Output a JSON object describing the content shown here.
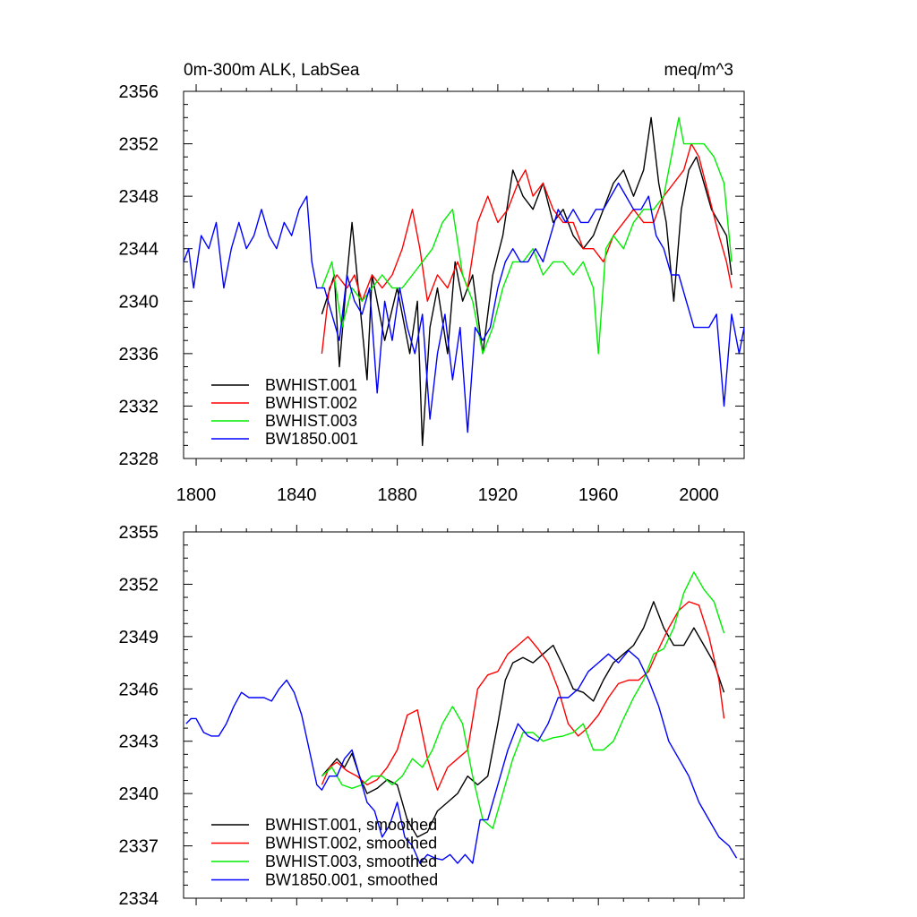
{
  "chart_data": [
    {
      "type": "line",
      "title_left": "0m-300m ALK, LabSea",
      "title_right": "meq/m^3",
      "xlim": [
        1795,
        2018
      ],
      "ylim": [
        2328,
        2356
      ],
      "xticks": [
        1800,
        1840,
        1880,
        1920,
        1960,
        2000
      ],
      "yticks": [
        2328,
        2332,
        2336,
        2340,
        2344,
        2348,
        2352,
        2356
      ],
      "legend_position": "bottom-left",
      "series": [
        {
          "name": "BWHIST.001",
          "color": "#000000",
          "x": [
            1850,
            1855,
            1857,
            1860,
            1862,
            1865,
            1868,
            1870,
            1875,
            1880,
            1885,
            1888,
            1890,
            1893,
            1896,
            1900,
            1903,
            1906,
            1910,
            1914,
            1918,
            1922,
            1926,
            1930,
            1934,
            1938,
            1942,
            1946,
            1950,
            1954,
            1958,
            1962,
            1966,
            1970,
            1974,
            1978,
            1981,
            1984,
            1987,
            1990,
            1993,
            1996,
            1999,
            2002,
            2005,
            2008,
            2011,
            2013
          ],
          "values": [
            2339,
            2342,
            2335,
            2342,
            2346,
            2340,
            2334,
            2342,
            2337,
            2341,
            2336,
            2340,
            2329,
            2338,
            2341,
            2336,
            2343,
            2340,
            2342,
            2336,
            2342,
            2345,
            2350,
            2348,
            2347,
            2349,
            2346,
            2347,
            2345,
            2344,
            2345,
            2347,
            2349,
            2350,
            2348,
            2350,
            2354,
            2349,
            2346,
            2340,
            2347,
            2350,
            2351,
            2349,
            2347,
            2346,
            2345,
            2342
          ]
        },
        {
          "name": "BWHIST.002",
          "color": "#ff0000",
          "x": [
            1850,
            1853,
            1856,
            1860,
            1863,
            1866,
            1870,
            1874,
            1878,
            1882,
            1886,
            1889,
            1892,
            1896,
            1900,
            1904,
            1908,
            1912,
            1916,
            1920,
            1924,
            1928,
            1931,
            1934,
            1938,
            1942,
            1946,
            1950,
            1954,
            1958,
            1962,
            1966,
            1970,
            1974,
            1978,
            1982,
            1986,
            1990,
            1994,
            1997,
            2000,
            2004,
            2008,
            2011,
            2013
          ],
          "values": [
            2336,
            2341,
            2342,
            2341,
            2342,
            2340,
            2342,
            2341,
            2342,
            2344,
            2347,
            2344,
            2340,
            2342,
            2341,
            2343,
            2341,
            2346,
            2348,
            2346,
            2347,
            2349,
            2350,
            2348,
            2349,
            2347,
            2346,
            2346,
            2344,
            2344,
            2343,
            2345,
            2346,
            2347,
            2346,
            2346,
            2348,
            2349,
            2350,
            2352,
            2351,
            2348,
            2345,
            2343,
            2341
          ]
        },
        {
          "name": "BWHIST.003",
          "color": "#00ee00",
          "x": [
            1850,
            1854,
            1858,
            1862,
            1866,
            1870,
            1874,
            1878,
            1882,
            1886,
            1890,
            1894,
            1898,
            1902,
            1906,
            1910,
            1914,
            1918,
            1922,
            1926,
            1930,
            1934,
            1938,
            1942,
            1946,
            1950,
            1954,
            1958,
            1960,
            1963,
            1966,
            1970,
            1974,
            1978,
            1982,
            1986,
            1990,
            1992,
            1994,
            1998,
            2002,
            2006,
            2010,
            2013
          ],
          "values": [
            2341,
            2343,
            2338,
            2341,
            2340,
            2341,
            2342,
            2341,
            2341,
            2342,
            2343,
            2344,
            2346,
            2347,
            2342,
            2340,
            2336,
            2338,
            2341,
            2343,
            2343,
            2344,
            2342,
            2343,
            2343,
            2342,
            2343,
            2341,
            2336,
            2344,
            2345,
            2344,
            2346,
            2347,
            2347,
            2348,
            2352,
            2354,
            2352,
            2352,
            2352,
            2351,
            2349,
            2343
          ]
        },
        {
          "name": "BW1850.001",
          "color": "#0000ff",
          "x": [
            1795,
            1797,
            1799,
            1802,
            1805,
            1808,
            1811,
            1814,
            1817,
            1820,
            1823,
            1826,
            1829,
            1832,
            1835,
            1838,
            1841,
            1844,
            1846,
            1848,
            1851,
            1854,
            1857,
            1860,
            1863,
            1866,
            1869,
            1872,
            1875,
            1878,
            1881,
            1884,
            1887,
            1890,
            1893,
            1896,
            1899,
            1902,
            1905,
            1908,
            1911,
            1914,
            1917,
            1920,
            1923,
            1926,
            1929,
            1932,
            1935,
            1938,
            1941,
            1944,
            1947,
            1950,
            1953,
            1956,
            1959,
            1962,
            1965,
            1968,
            1971,
            1974,
            1977,
            1980,
            1983,
            1986,
            1989,
            1992,
            1995,
            1998,
            2001,
            2004,
            2007,
            2010,
            2013,
            2016,
            2018
          ],
          "values": [
            2343,
            2344,
            2341,
            2345,
            2344,
            2346,
            2341,
            2344,
            2346,
            2344,
            2345,
            2347,
            2345,
            2344,
            2346,
            2345,
            2347,
            2348,
            2343,
            2341,
            2341,
            2339,
            2337,
            2342,
            2340,
            2339,
            2341,
            2333,
            2340,
            2337,
            2341,
            2338,
            2336,
            2339,
            2331,
            2336,
            2339,
            2334,
            2338,
            2330,
            2338,
            2337,
            2338,
            2341,
            2343,
            2344,
            2343,
            2343,
            2344,
            2343,
            2345,
            2347,
            2346,
            2347,
            2346,
            2346,
            2347,
            2347,
            2348,
            2349,
            2348,
            2347,
            2347,
            2348,
            2345,
            2344,
            2342,
            2342,
            2340,
            2338,
            2338,
            2338,
            2339,
            2332,
            2339,
            2336,
            2338
          ]
        }
      ]
    },
    {
      "type": "line",
      "xlim": [
        1795,
        2018
      ],
      "ylim": [
        2334,
        2355
      ],
      "xticks": [
        1800,
        1840,
        1880,
        1920,
        1960,
        2000
      ],
      "yticks": [
        2334,
        2337,
        2340,
        2343,
        2346,
        2349,
        2352,
        2355
      ],
      "legend_position": "bottom-left",
      "series": [
        {
          "name": "BWHIST.001, smoothed",
          "color": "#000000",
          "x": [
            1850,
            1853,
            1856,
            1859,
            1862,
            1865,
            1868,
            1872,
            1876,
            1880,
            1884,
            1888,
            1892,
            1896,
            1900,
            1904,
            1908,
            1912,
            1916,
            1920,
            1923,
            1926,
            1930,
            1934,
            1938,
            1942,
            1946,
            1950,
            1954,
            1958,
            1962,
            1966,
            1970,
            1974,
            1978,
            1982,
            1986,
            1990,
            1994,
            1998,
            2002,
            2006,
            2010
          ],
          "values": [
            2341,
            2341.5,
            2342,
            2341.5,
            2342.3,
            2341,
            2340,
            2340.3,
            2340.8,
            2340.5,
            2338.5,
            2337.5,
            2337.8,
            2339,
            2339.5,
            2340,
            2341,
            2340.5,
            2341,
            2344,
            2346.5,
            2347.5,
            2347.8,
            2347.5,
            2348,
            2348.5,
            2347.3,
            2346,
            2345.8,
            2345.3,
            2346.5,
            2347.5,
            2348,
            2348.5,
            2349.5,
            2351,
            2349.5,
            2348.5,
            2348.5,
            2349.5,
            2348.5,
            2347.5,
            2345.8
          ]
        },
        {
          "name": "BWHIST.002, smoothed",
          "color": "#ff0000",
          "x": [
            1850,
            1853,
            1856,
            1860,
            1864,
            1868,
            1872,
            1876,
            1880,
            1884,
            1888,
            1892,
            1896,
            1900,
            1904,
            1908,
            1912,
            1916,
            1920,
            1924,
            1928,
            1932,
            1936,
            1940,
            1944,
            1948,
            1952,
            1956,
            1960,
            1964,
            1968,
            1972,
            1976,
            1980,
            1984,
            1988,
            1992,
            1996,
            2000,
            2004,
            2008,
            2010
          ],
          "values": [
            2340.5,
            2341.5,
            2341.8,
            2341.3,
            2341,
            2340.5,
            2340.8,
            2341.5,
            2342.5,
            2344.5,
            2344.8,
            2342,
            2340.2,
            2341.5,
            2342,
            2342.5,
            2346,
            2346.8,
            2347,
            2348,
            2348.5,
            2349,
            2348.3,
            2347.5,
            2346,
            2344,
            2343.3,
            2343.8,
            2344.5,
            2345.5,
            2346.3,
            2346.5,
            2346.5,
            2347,
            2348.3,
            2349.5,
            2350.5,
            2351,
            2350.8,
            2349,
            2346.5,
            2344.3
          ]
        },
        {
          "name": "BWHIST.003, smoothed",
          "color": "#00ee00",
          "x": [
            1850,
            1854,
            1858,
            1862,
            1866,
            1870,
            1874,
            1878,
            1882,
            1886,
            1890,
            1894,
            1898,
            1902,
            1906,
            1910,
            1914,
            1918,
            1922,
            1926,
            1930,
            1934,
            1938,
            1942,
            1946,
            1950,
            1954,
            1958,
            1962,
            1966,
            1970,
            1974,
            1978,
            1982,
            1986,
            1990,
            1994,
            1998,
            2002,
            2006,
            2010
          ],
          "values": [
            2341,
            2341.5,
            2340.5,
            2340.3,
            2340.5,
            2341,
            2341,
            2340.5,
            2341,
            2342,
            2341.5,
            2342.5,
            2344,
            2345,
            2344,
            2341,
            2338.5,
            2338,
            2340,
            2342,
            2343.5,
            2343.5,
            2343,
            2343.2,
            2343.3,
            2343.5,
            2344,
            2342.5,
            2342.5,
            2343,
            2344.3,
            2345.5,
            2346.5,
            2348,
            2348.3,
            2349.5,
            2351.5,
            2352.7,
            2351.7,
            2351,
            2349.2
          ]
        },
        {
          "name": "BW1850.001, smoothed",
          "color": "#0000ff",
          "x": [
            1796,
            1798,
            1800,
            1803,
            1806,
            1809,
            1812,
            1815,
            1818,
            1821,
            1824,
            1827,
            1830,
            1833,
            1836,
            1839,
            1842,
            1845,
            1848,
            1850,
            1853,
            1856,
            1859,
            1862,
            1865,
            1868,
            1871,
            1874,
            1877,
            1880,
            1883,
            1886,
            1889,
            1892,
            1895,
            1898,
            1901,
            1904,
            1907,
            1910,
            1913,
            1916,
            1920,
            1924,
            1928,
            1932,
            1936,
            1940,
            1944,
            1948,
            1952,
            1956,
            1960,
            1964,
            1968,
            1972,
            1976,
            1980,
            1984,
            1988,
            1992,
            1996,
            2000,
            2004,
            2008,
            2012,
            2015
          ],
          "values": [
            2344,
            2344.3,
            2344.3,
            2343.5,
            2343.3,
            2343.3,
            2344,
            2345,
            2345.8,
            2345.5,
            2345.5,
            2345.5,
            2345.3,
            2346,
            2346.5,
            2345.8,
            2344.5,
            2342.5,
            2340.5,
            2340.2,
            2341,
            2341,
            2342,
            2342.5,
            2341,
            2339.5,
            2339,
            2337.5,
            2338.2,
            2339.5,
            2337.5,
            2337,
            2336,
            2336.5,
            2336.3,
            2336.2,
            2336.5,
            2336,
            2336.5,
            2336,
            2338.5,
            2338.5,
            2340.5,
            2342.5,
            2344,
            2343.3,
            2343,
            2344,
            2345.5,
            2345.5,
            2346,
            2347,
            2347.5,
            2348,
            2347.5,
            2348.2,
            2347.7,
            2346.5,
            2345,
            2343,
            2342,
            2341,
            2339.5,
            2338.5,
            2337.5,
            2337,
            2336.3
          ]
        }
      ]
    }
  ]
}
